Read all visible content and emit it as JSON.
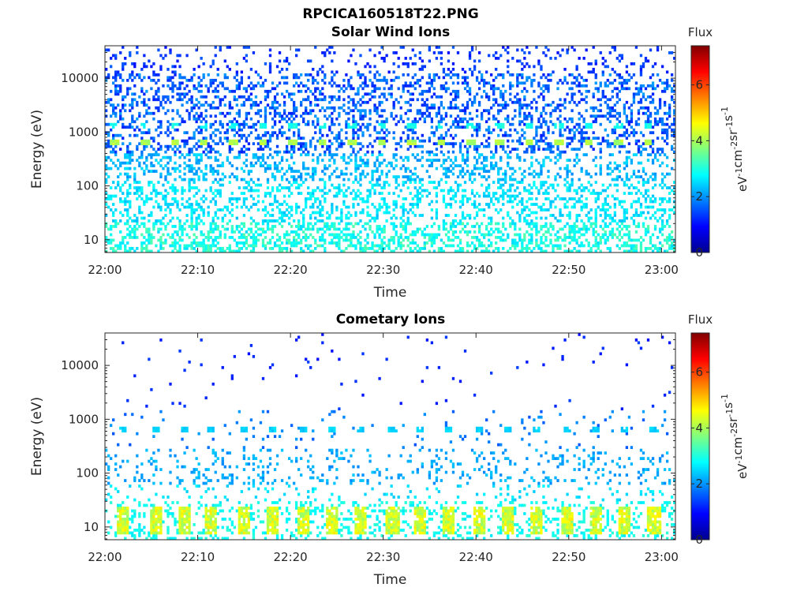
{
  "figure_title": "RPCICA160518T22.PNG",
  "chart_data": [
    {
      "type": "heatmap",
      "title": "Solar Wind Ions",
      "xlabel": "Time",
      "ylabel": "Energy (eV)",
      "x_ticks": [
        "22:00",
        "22:10",
        "22:20",
        "22:30",
        "22:40",
        "22:50",
        "23:00"
      ],
      "x_range_minutes": [
        0,
        61.5
      ],
      "y_scale": "log",
      "y_ticks": [
        10,
        100,
        1000,
        10000
      ],
      "y_tick_labels": [
        "10",
        "100",
        "1000",
        "10000"
      ],
      "ylim": [
        5.8,
        40000
      ],
      "colorbar": {
        "title": "Flux",
        "label": "eV-1cm-2sr-1s-1",
        "range": [
          0,
          7.4
        ],
        "ticks": [
          0,
          2,
          4,
          6
        ],
        "colormap": "jet"
      },
      "features": {
        "beam_energy_eV": 650,
        "beam_secondary_eV": 1350,
        "beam_times_min": [
          1,
          4.3,
          7.5,
          10.6,
          13.8,
          17,
          20.2,
          23.4,
          26.6,
          29.8,
          33,
          36.2,
          39.4,
          42.6,
          45.8,
          49,
          52.2,
          55.4,
          58.6
        ],
        "beam_flux": 3.8
      }
    },
    {
      "type": "heatmap",
      "title": "Cometary Ions",
      "xlabel": "Time",
      "ylabel": "Energy (eV)",
      "x_ticks": [
        "22:00",
        "22:10",
        "22:20",
        "22:30",
        "22:40",
        "22:50",
        "23:00"
      ],
      "x_range_minutes": [
        0,
        61.5
      ],
      "y_scale": "log",
      "y_ticks": [
        10,
        100,
        1000,
        10000
      ],
      "y_tick_labels": [
        "10",
        "100",
        "1000",
        "10000"
      ],
      "ylim": [
        5.8,
        40000
      ],
      "colorbar": {
        "title": "Flux",
        "label": "eV-1cm-2sr-1s-1",
        "range": [
          0,
          7.4
        ],
        "ticks": [
          0,
          2,
          4,
          6
        ],
        "colormap": "jet"
      },
      "features": {
        "low_energy_band_eV": [
          7,
          25
        ],
        "low_energy_peak_flux": 4.6,
        "burst_times_min": [
          2,
          5.5,
          8.5,
          11.5,
          15,
          18,
          21.3,
          24.5,
          27.5,
          31,
          34,
          37,
          40.3,
          43.5,
          46.5,
          49.8,
          53,
          56,
          59.2
        ],
        "beam_energy_eV": 620,
        "beam_flux": 2.3
      }
    }
  ]
}
